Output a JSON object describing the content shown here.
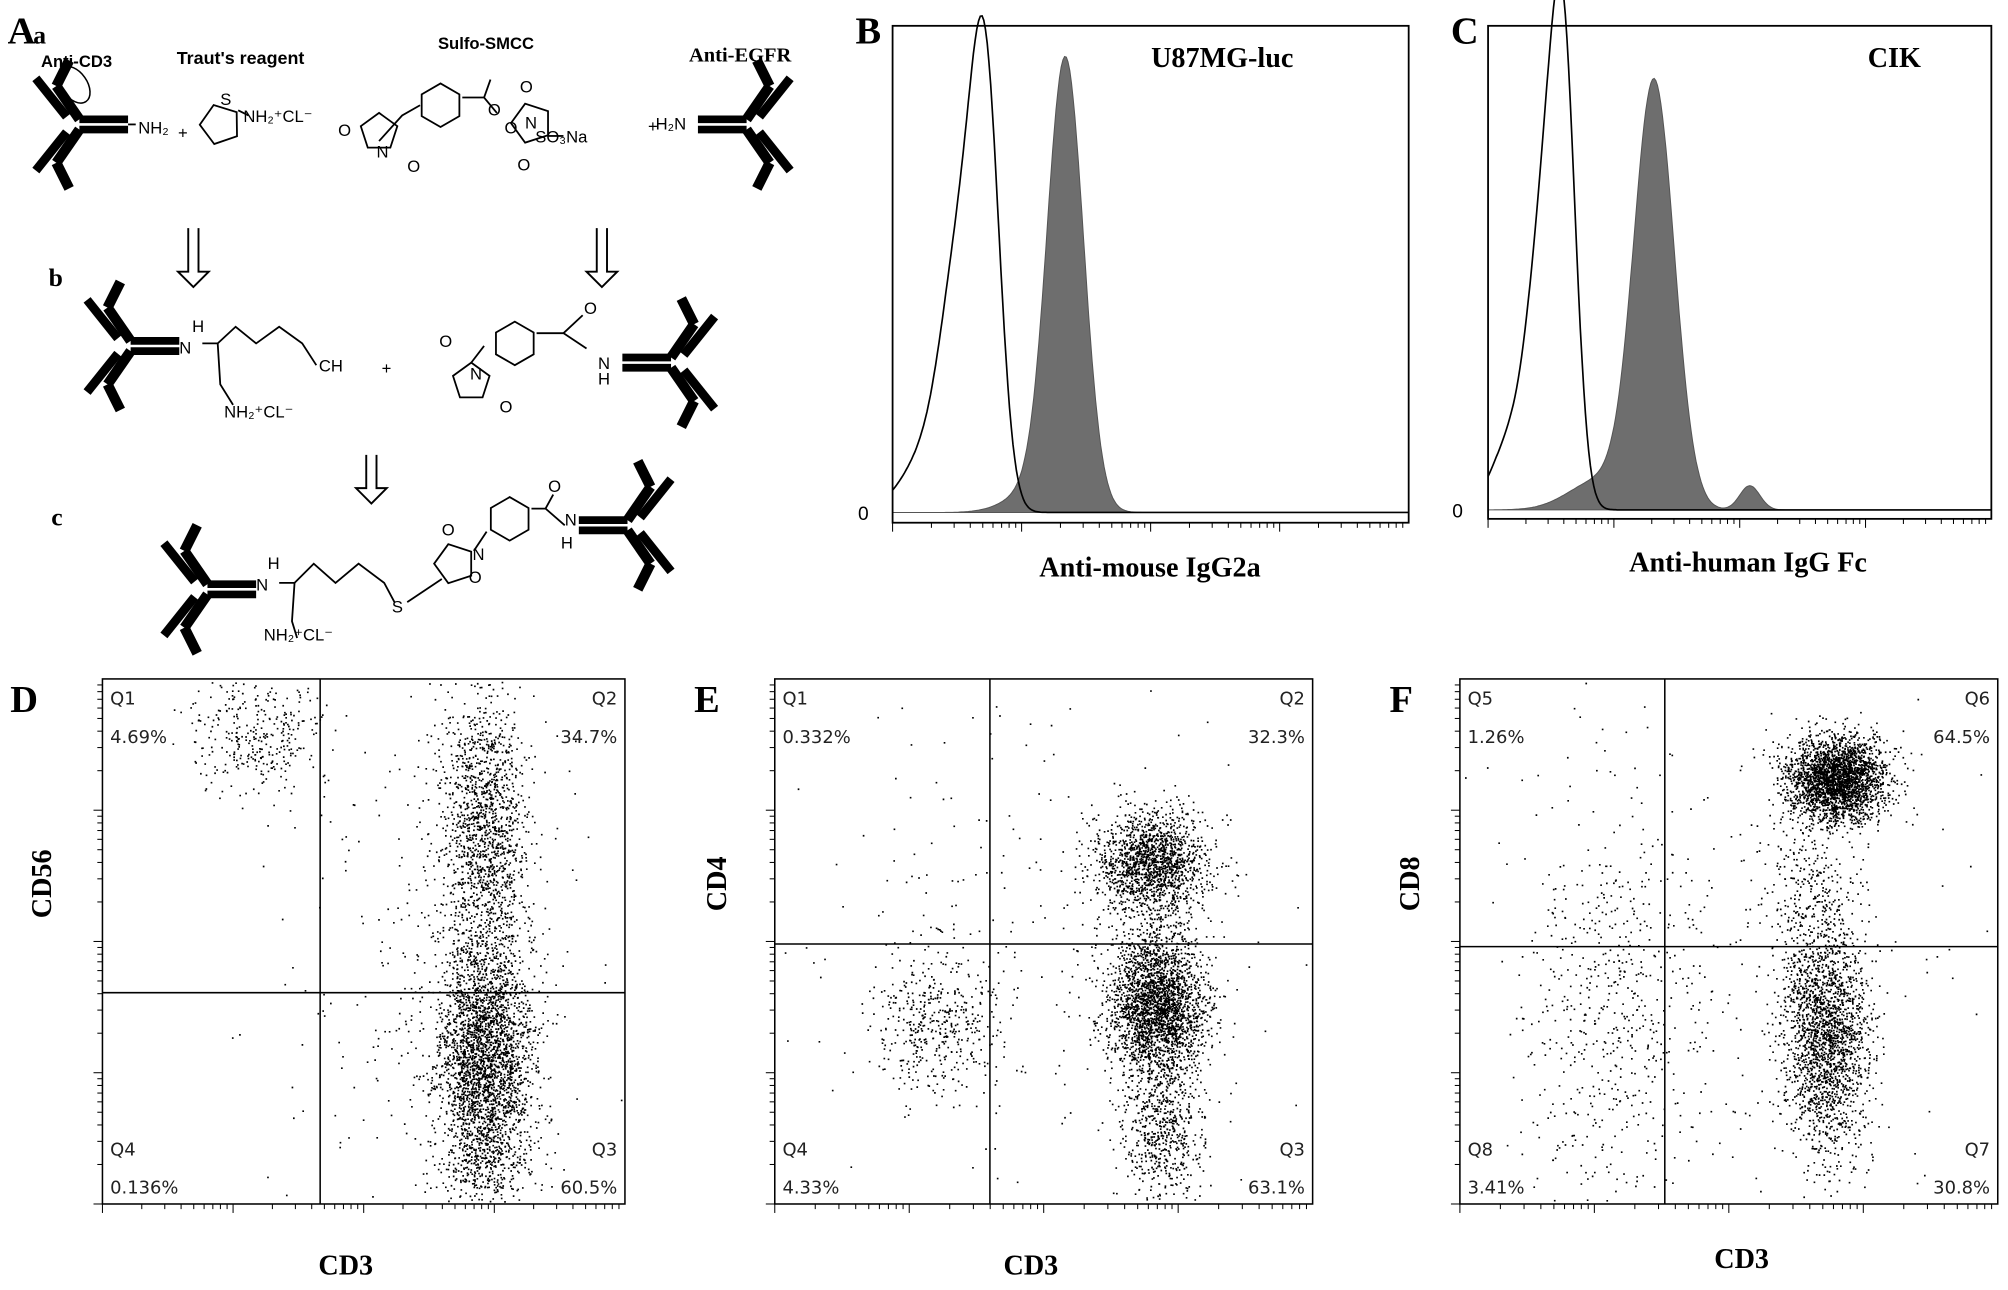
{
  "panel_labels": [
    "A",
    "B",
    "C",
    "D",
    "E",
    "F"
  ],
  "scheme": {
    "step_labels": [
      "a",
      "b",
      "c"
    ],
    "reagents": [
      "Anti-CD3",
      "Traut's reagent",
      "Sulfo-SMCC",
      "Anti-EGFR"
    ],
    "atoms": [
      "NH₂",
      "+",
      "S",
      "NH₂⁺CL⁻",
      "O",
      "N",
      "O",
      "O",
      "O",
      "O",
      "N",
      "O",
      "SO₃Na",
      "+",
      "H₂N",
      "H",
      "N",
      "CH",
      "NH₂⁺CL⁻",
      "+",
      "O",
      "N",
      "O",
      "O",
      "N",
      "H",
      "H",
      "N",
      "NH₂⁺CL⁻",
      "S",
      "O",
      "N",
      "O",
      "O",
      "N",
      "H"
    ]
  },
  "histograms": [
    {
      "title": "U87MG-luc",
      "zero": "0",
      "xlabel": "Anti-mouse IgG2a"
    },
    {
      "title": "CIK",
      "zero": "0",
      "xlabel": "Anti-human IgG Fc"
    }
  ],
  "dot_plots": [
    {
      "ylabel": "CD56",
      "xlabel": "CD3",
      "quadrants": [
        {
          "name": "Q1",
          "percent": "4.69%"
        },
        {
          "name": "Q2",
          "percent": "34.7%"
        },
        {
          "name": "Q4",
          "percent": "0.136%"
        },
        {
          "name": "Q3",
          "percent": "60.5%"
        }
      ]
    },
    {
      "ylabel": "CD4",
      "xlabel": "CD3",
      "quadrants": [
        {
          "name": "Q1",
          "percent": "0.332%"
        },
        {
          "name": "Q2",
          "percent": "32.3%"
        },
        {
          "name": "Q4",
          "percent": "4.33%"
        },
        {
          "name": "Q3",
          "percent": "63.1%"
        }
      ]
    },
    {
      "ylabel": "CD8",
      "xlabel": "CD3",
      "quadrants": [
        {
          "name": "Q5",
          "percent": "1.26%"
        },
        {
          "name": "Q6",
          "percent": "64.5%"
        },
        {
          "name": "Q8",
          "percent": "3.41%"
        },
        {
          "name": "Q7",
          "percent": "30.8%"
        }
      ]
    }
  ]
}
